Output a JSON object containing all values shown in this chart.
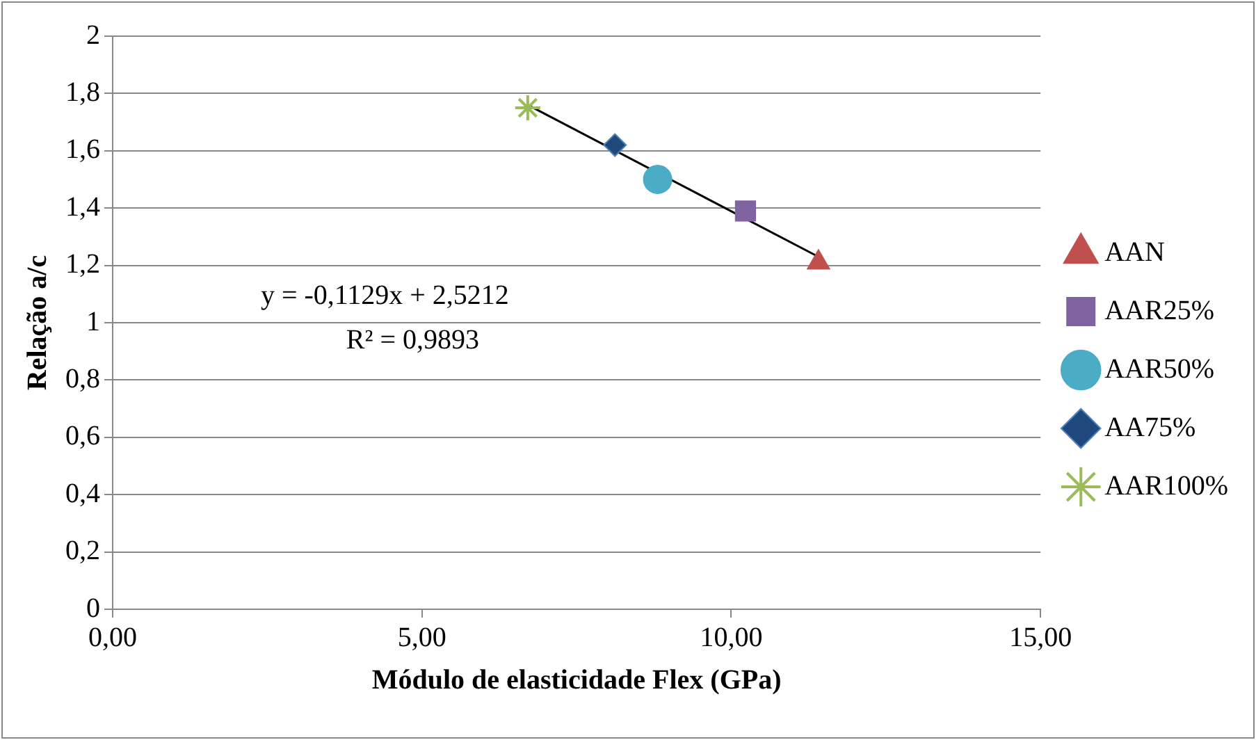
{
  "chart_data": {
    "type": "scatter",
    "xlabel": "Módulo de elasticidade Flex (GPa)",
    "ylabel": "Relação a/c",
    "xlim": [
      0,
      15
    ],
    "xticks": [
      {
        "value": 0,
        "label": "0,00"
      },
      {
        "value": 5,
        "label": "5,00"
      },
      {
        "value": 10,
        "label": "10,00"
      },
      {
        "value": 15,
        "label": "15,00"
      }
    ],
    "ylim": [
      0,
      2
    ],
    "yticks": [
      0,
      {
        "value": 0.2,
        "label": "0,2"
      },
      {
        "value": 0.4,
        "label": "0,4"
      },
      {
        "value": 0.6,
        "label": "0,6"
      },
      {
        "value": 0.8,
        "label": "0,8"
      },
      1,
      {
        "value": 1.2,
        "label": "1,2"
      },
      {
        "value": 1.4,
        "label": "1,4"
      },
      {
        "value": 1.6,
        "label": "1,6"
      },
      {
        "value": 1.8,
        "label": "1,8"
      },
      2
    ],
    "grid": "y",
    "legend": "right",
    "annotations": [
      "y = -0,1129x + 2,5212",
      "R² = 0,9893"
    ],
    "series": [
      {
        "name": "AAN",
        "color": "#c0504d",
        "marker": "triangle",
        "x": [
          11.41
        ],
        "values": [
          1.21
        ]
      },
      {
        "name": "AAR25%",
        "color": "#8064a2",
        "marker": "square",
        "x": [
          10.23
        ],
        "values": [
          1.39
        ]
      },
      {
        "name": "AAR50%",
        "color": "#4bacc6",
        "marker": "circle",
        "x": [
          8.81
        ],
        "values": [
          1.5
        ]
      },
      {
        "name": "AA75%",
        "color": "#1f497d",
        "marker": "diamond",
        "x": [
          8.12
        ],
        "values": [
          1.62
        ]
      },
      {
        "name": "AAR100%",
        "color": "#9bbb59",
        "marker": "cross",
        "x": [
          6.71
        ],
        "values": [
          1.75
        ]
      },
      {
        "type": "line",
        "color": "#000000",
        "marker": "none",
        "x": [
          6.71,
          11.41
        ],
        "values": [
          1.76,
          1.23
        ]
      }
    ]
  }
}
